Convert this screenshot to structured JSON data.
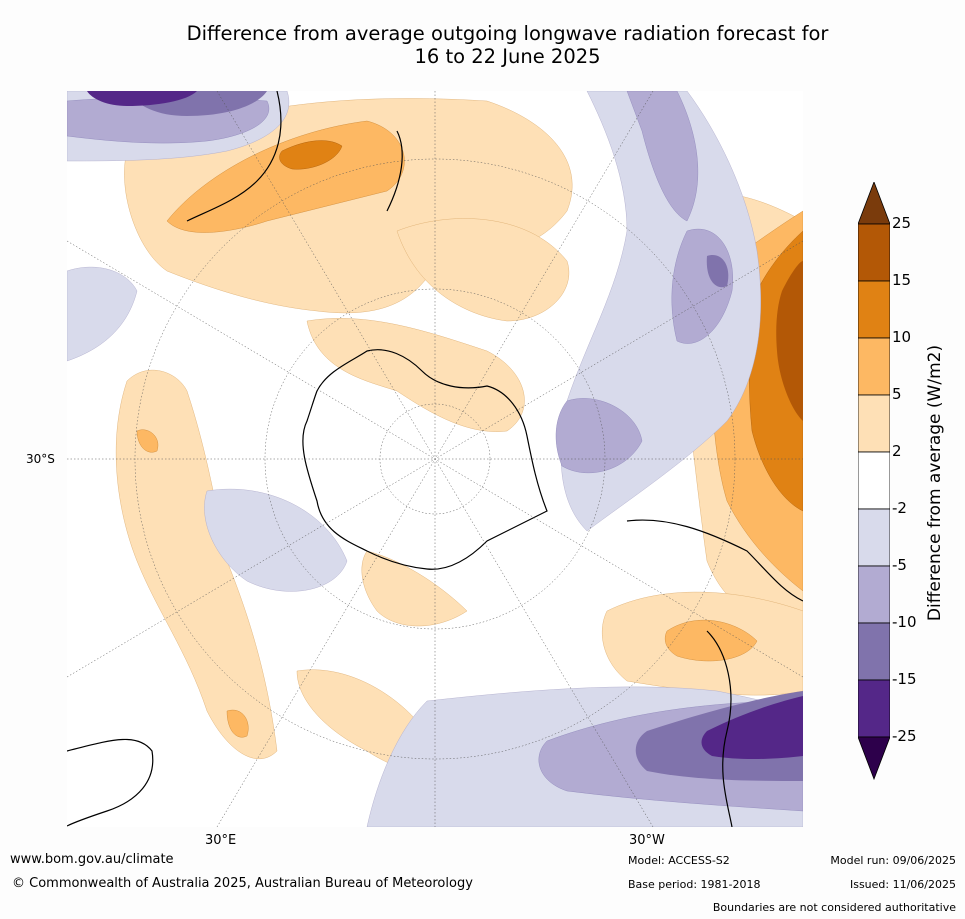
{
  "title_line1": "Difference from average outgoing longwave radiation forecast for",
  "title_line2": "16 to 22 June 2025",
  "map": {
    "lat_label": "30°S",
    "lon_labels": [
      "30°E",
      "30°W"
    ]
  },
  "colorbar": {
    "label": "Difference from average (W/m2)",
    "ticks": [
      "25",
      "15",
      "10",
      "5",
      "2",
      "-2",
      "-5",
      "-10",
      "-15",
      "-25"
    ],
    "colors": [
      "#7a3b0c",
      "#b35806",
      "#e08214",
      "#fdb863",
      "#fee0b6",
      "#ffffff",
      "#d8daeb",
      "#b2abd2",
      "#8073ac",
      "#542788",
      "#2d004b"
    ]
  },
  "footer": {
    "website": "www.bom.gov.au/climate",
    "copyright": "© Commonwealth of Australia 2025, Australian Bureau of Meteorology",
    "model": "Model: ACCESS-S2",
    "base_period": "Base period: 1981-2018",
    "model_run": "Model run: 09/06/2025",
    "issued": "Issued: 11/06/2025",
    "disclaimer": "Boundaries are not considered authoritative"
  }
}
